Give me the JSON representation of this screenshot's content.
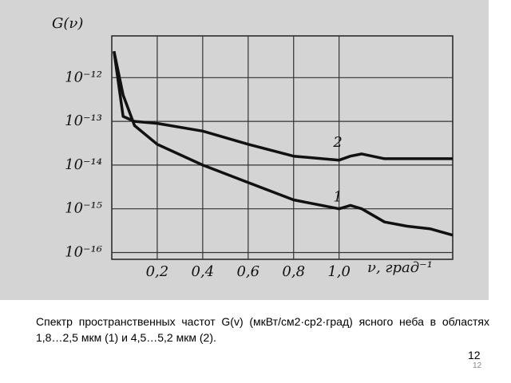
{
  "chart_data": {
    "type": "line",
    "y_label": "G(ν)",
    "x_label": "ν, град⁻¹",
    "x": [
      0.01,
      0.05,
      0.1,
      0.2,
      0.4,
      0.6,
      0.8,
      1.0,
      1.05,
      1.1,
      1.2,
      1.3,
      1.4,
      1.5
    ],
    "series": [
      {
        "name": "1",
        "color": "#111111",
        "values": [
          4e-12,
          4e-13,
          8e-14,
          3e-14,
          1e-14,
          4e-15,
          1.6e-15,
          1e-15,
          1.2e-15,
          1e-15,
          5e-16,
          4e-16,
          3.5e-16,
          2.5e-16
        ]
      },
      {
        "name": "2",
        "color": "#111111",
        "values": [
          4e-12,
          1.3e-13,
          1e-13,
          9e-14,
          6e-14,
          3e-14,
          1.6e-14,
          1.3e-14,
          1.6e-14,
          1.8e-14,
          1.4e-14,
          1.4e-14,
          1.4e-14,
          1.4e-14
        ]
      }
    ],
    "xlim": [
      0,
      1.5
    ],
    "ylim": [
      7e-17,
      9e-12
    ],
    "log_y": true,
    "grid": true,
    "xticks": [
      {
        "value": 0.2,
        "label": "0,2"
      },
      {
        "value": 0.4,
        "label": "0,4"
      },
      {
        "value": 0.6,
        "label": "0,6"
      },
      {
        "value": 0.8,
        "label": "0,8"
      },
      {
        "value": 1.0,
        "label": "1,0"
      }
    ],
    "yticks": [
      {
        "value": 1e-12,
        "label": "10⁻¹²"
      },
      {
        "value": 1e-13,
        "label": "10⁻¹³"
      },
      {
        "value": 1e-14,
        "label": "10⁻¹⁴"
      },
      {
        "value": 1e-15,
        "label": "10⁻¹⁵"
      },
      {
        "value": 1e-16,
        "label": "10⁻¹⁶"
      }
    ]
  },
  "caption": "Спектр пространственных частот G(v) (мкВт/см2·ср2·град) ясного неба в областях 1,8…2,5 мкм (1) и 4,5…5,2 мкм (2).",
  "page_number": "12",
  "footer_number": "12"
}
